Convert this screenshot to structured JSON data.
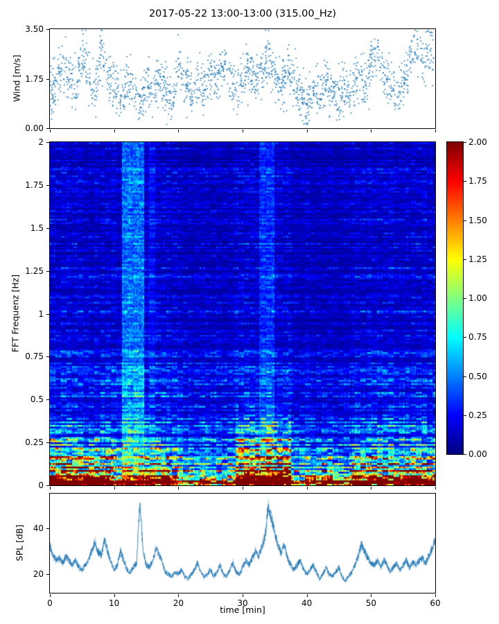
{
  "title": "2017-05-22 13:00-13:00 (315.00_Hz)",
  "chart_data": [
    {
      "id": "wind",
      "type": "scatter",
      "ylabel": "Wind [m/s]",
      "xlim": [
        0,
        60
      ],
      "ylim": [
        0,
        3.5
      ],
      "ytick_values": [
        0,
        1.75,
        3.5
      ],
      "ytick_labels": [
        "0.00",
        "1.75",
        "3.50"
      ],
      "xtick_values": [
        0,
        10,
        20,
        30,
        40,
        50,
        60
      ],
      "marker_color": "#1f77b4",
      "n_points": 1900,
      "noise_sd": 0.42,
      "seed": 7,
      "trend_t_step": 1,
      "trend": [
        1.3,
        1.6,
        2.2,
        1.8,
        1.2,
        2.6,
        1.9,
        1.4,
        2.8,
        2.0,
        1.5,
        1.0,
        1.8,
        1.3,
        0.9,
        1.6,
        1.2,
        1.9,
        1.4,
        1.0,
        2.3,
        1.7,
        1.2,
        1.8,
        1.4,
        2.0,
        1.5,
        2.4,
        1.8,
        1.2,
        1.9,
        2.2,
        1.6,
        2.0,
        2.6,
        1.8,
        1.3,
        2.1,
        1.6,
        1.1,
        0.9,
        1.4,
        1.1,
        1.7,
        1.3,
        0.8,
        1.5,
        1.1,
        1.8,
        1.4,
        2.2,
        2.6,
        1.9,
        1.5,
        1.1,
        1.7,
        2.4,
        2.9,
        2.2,
        2.7,
        2.4
      ]
    },
    {
      "id": "spectrogram",
      "type": "heatmap",
      "ylabel": "FFT Frequenz [Hz]",
      "xlim": [
        0,
        60
      ],
      "ylim": [
        0,
        2
      ],
      "clim": [
        0,
        2
      ],
      "colormap": "jet",
      "ytick_values": [
        0,
        0.25,
        0.5,
        0.75,
        1,
        1.25,
        1.5,
        1.75,
        2
      ],
      "ytick_labels": [
        "0",
        "0.25",
        "0.5",
        "0.75",
        "1",
        "1.25",
        "1.5",
        "1.75",
        "2"
      ],
      "xtick_values": [
        0,
        10,
        20,
        30,
        40,
        50,
        60
      ],
      "colorbar_tick_values": [
        0,
        0.25,
        0.5,
        0.75,
        1,
        1.25,
        1.5,
        1.75,
        2
      ],
      "colorbar_tick_labels": [
        "0.00",
        "0.25",
        "0.50",
        "0.75",
        "1.00",
        "1.25",
        "1.50",
        "1.75",
        "2.00"
      ],
      "grid": {
        "nx": 278,
        "ny": 198
      },
      "seed": 12345,
      "base_profile": {
        "floor": 0.13,
        "amp1": 2.4,
        "decay1": 0.045,
        "amp2": 0.5,
        "decay2": 0.4
      },
      "time_bumps": [
        {
          "t0": 0,
          "t1": 10,
          "fmax": 0.35,
          "gain": 1.9
        },
        {
          "t0": 15,
          "t1": 18.5,
          "fmax": 0.3,
          "gain": 1.7
        },
        {
          "t0": 29,
          "t1": 37.5,
          "fmax": 0.55,
          "gain": 2.1
        },
        {
          "t0": 41,
          "t1": 45,
          "fmax": 0.25,
          "gain": 1.45
        },
        {
          "t0": 47,
          "t1": 60,
          "fmax": 0.3,
          "gain": 1.6
        }
      ],
      "bright_columns": [
        {
          "t0": 11.3,
          "t1": 14.6,
          "boost": 0.32
        },
        {
          "t0": 15.3,
          "t1": 16.3,
          "boost": 0.12
        },
        {
          "t0": 32.5,
          "t1": 35.0,
          "boost": 0.18
        }
      ],
      "dark_columns": [
        {
          "t0": 20,
          "t1": 29,
          "gain": 0.85
        },
        {
          "t0": 37.5,
          "t1": 47,
          "gain": 0.8
        }
      ]
    },
    {
      "id": "spl",
      "type": "line",
      "ylabel": "SPL [dB]",
      "xlabel": "time [min]",
      "xlim": [
        0,
        60
      ],
      "ylim": [
        12,
        55
      ],
      "ytick_values": [
        20,
        40
      ],
      "ytick_labels": [
        "20",
        "40"
      ],
      "xtick_values": [
        0,
        10,
        20,
        30,
        40,
        50,
        60
      ],
      "xtick_labels": [
        "0",
        "10",
        "20",
        "30",
        "40",
        "50",
        "60"
      ],
      "line_color": "#1f77b4",
      "seed": 99,
      "x_step": 0.5,
      "values": [
        33,
        28,
        26,
        27,
        25,
        28,
        26,
        24,
        26,
        23,
        22,
        24,
        26,
        30,
        34,
        30,
        28,
        35,
        30,
        25,
        22,
        24,
        30,
        26,
        22,
        21,
        23,
        25,
        52,
        30,
        24,
        23,
        26,
        31,
        29,
        25,
        21,
        20,
        19,
        21,
        20,
        22,
        19,
        18,
        20,
        22,
        25,
        21,
        19,
        20,
        22,
        19,
        21,
        24,
        20,
        19,
        22,
        25,
        21,
        20,
        23,
        26,
        24,
        27,
        30,
        28,
        32,
        36,
        50,
        44,
        38,
        33,
        29,
        33,
        27,
        24,
        22,
        24,
        26,
        22,
        20,
        22,
        24,
        21,
        18,
        20,
        23,
        20,
        19,
        21,
        23,
        19,
        17,
        19,
        21,
        24,
        28,
        33,
        30,
        27,
        25,
        24,
        26,
        23,
        26,
        24,
        21,
        23,
        25,
        22,
        24,
        26,
        23,
        25,
        24,
        26,
        27,
        25,
        28,
        31,
        35
      ]
    }
  ]
}
